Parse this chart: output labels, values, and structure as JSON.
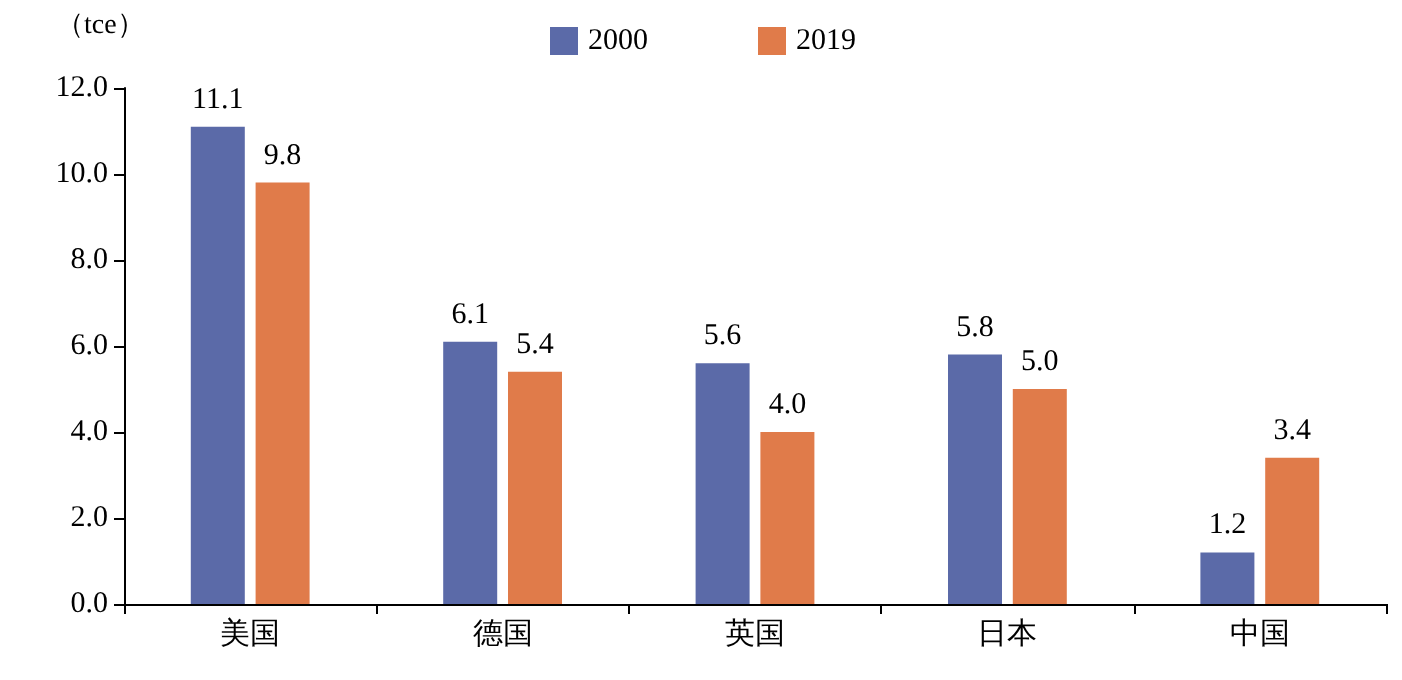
{
  "chart_data": {
    "type": "bar",
    "ylabel": "（tce）",
    "categories": [
      "美国",
      "德国",
      "英国",
      "日本",
      "中国"
    ],
    "series": [
      {
        "name": "2000",
        "color": "#5b6aa8",
        "values": [
          11.1,
          6.1,
          5.6,
          5.8,
          1.2
        ],
        "value_labels": [
          "11.1",
          "6.1",
          "5.6",
          "5.8",
          "1.2"
        ]
      },
      {
        "name": "2019",
        "color": "#e07b4a",
        "values": [
          9.8,
          5.4,
          4.0,
          5.0,
          3.4
        ],
        "value_labels": [
          "9.8",
          "5.4",
          "4.0",
          "5.0",
          "3.4"
        ]
      }
    ],
    "ylim": [
      0,
      12
    ],
    "yticks": [
      {
        "value": 0,
        "label": "0.0"
      },
      {
        "value": 2,
        "label": "2.0"
      },
      {
        "value": 4,
        "label": "4.0"
      },
      {
        "value": 6,
        "label": "6.0"
      },
      {
        "value": 8,
        "label": "8.0"
      },
      {
        "value": 10,
        "label": "10.0"
      },
      {
        "value": 12,
        "label": "12.0"
      }
    ],
    "grid": false,
    "legend": "top"
  }
}
